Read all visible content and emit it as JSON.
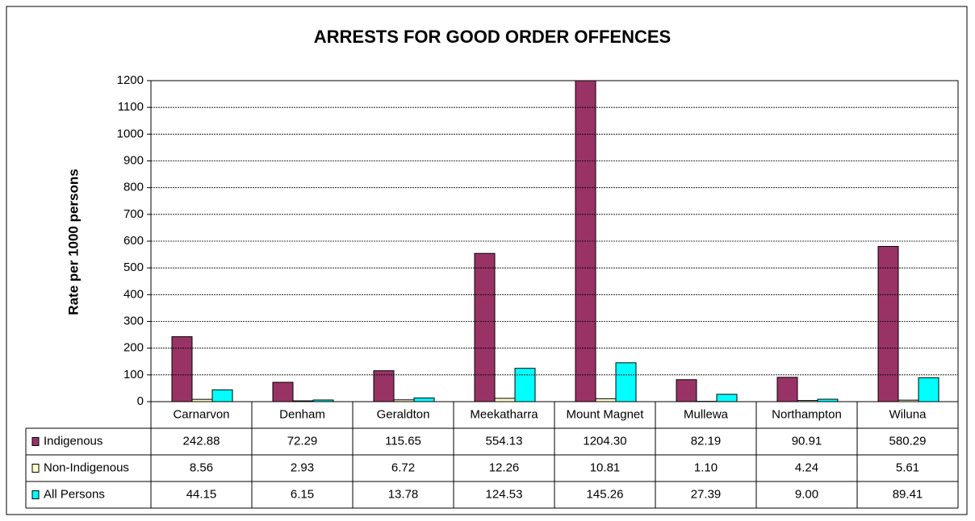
{
  "chart_data": {
    "type": "bar",
    "title": "ARRESTS FOR  GOOD ORDER OFFENCES",
    "y_label": "Rate per 1000 persons",
    "categories": [
      "Carnarvon",
      "Denham",
      "Geraldton",
      "Meekatharra",
      "Mount Magnet",
      "Mullewa",
      "Northampton",
      "Wiluna"
    ],
    "series": [
      {
        "name": "Indigenous",
        "color": "#993366",
        "values": [
          242.88,
          72.29,
          115.65,
          554.13,
          1204.3,
          82.19,
          90.91,
          580.29
        ],
        "value_labels": [
          "242.88",
          "72.29",
          "115.65",
          "554.13",
          "1204.30",
          "82.19",
          "90.91",
          "580.29"
        ]
      },
      {
        "name": "Non-Indigenous",
        "color": "#ffffcc",
        "values": [
          8.56,
          2.93,
          6.72,
          12.26,
          10.81,
          1.1,
          4.24,
          5.61
        ],
        "value_labels": [
          "8.56",
          "2.93",
          "6.72",
          "12.26",
          "10.81",
          "1.10",
          "4.24",
          "5.61"
        ]
      },
      {
        "name": "All Persons",
        "color": "#00ffff",
        "values": [
          44.15,
          6.15,
          13.78,
          124.53,
          145.26,
          27.39,
          9.0,
          89.41
        ],
        "value_labels": [
          "44.15",
          "6.15",
          "13.78",
          "124.53",
          "145.26",
          "27.39",
          "9.00",
          "89.41"
        ]
      }
    ],
    "ylim": [
      0,
      1200
    ],
    "yticks": [
      0,
      100,
      200,
      300,
      400,
      500,
      600,
      700,
      800,
      900,
      1000,
      1100,
      1200
    ],
    "grid": true
  }
}
